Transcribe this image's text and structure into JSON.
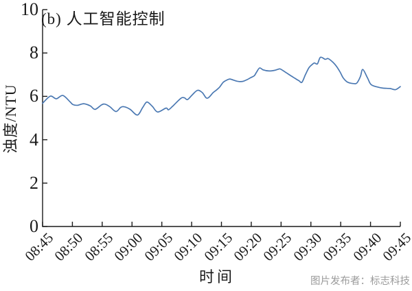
{
  "figure": {
    "title": "(b) 人工智能控制",
    "xlabel": "时间",
    "ylabel": "浊度/NTU",
    "watermark": "图片发布者：标志科技"
  },
  "colors": {
    "background": "#ffffff",
    "axis": "#1a1a1a",
    "text": "#1a1a1a",
    "line": "#4a78b2",
    "watermark": "#9b9b9b"
  },
  "chart_data": {
    "type": "line",
    "title": "(b) 人工智能控制",
    "xlabel": "时间",
    "ylabel": "浊度/NTU",
    "grid": false,
    "legend": null,
    "xlim_minutes": [
      0,
      60
    ],
    "ylim": [
      0,
      10
    ],
    "y_ticks": [
      0,
      2,
      4,
      6,
      8,
      10
    ],
    "x_tick_labels": [
      "08:45",
      "08:50",
      "08:55",
      "09:00",
      "09:05",
      "09:10",
      "09:15",
      "09:20",
      "09:25",
      "09:30",
      "09:35",
      "09:40",
      "09:45"
    ],
    "x_tick_interval_min": 5,
    "series": [
      {
        "name": "浊度",
        "unit": "NTU",
        "points_min_ntu": [
          [
            0,
            5.68
          ],
          [
            1.3,
            6.01
          ],
          [
            2.3,
            5.89
          ],
          [
            3.4,
            6.04
          ],
          [
            4.6,
            5.75
          ],
          [
            5.1,
            5.62
          ],
          [
            5.9,
            5.59
          ],
          [
            6.9,
            5.66
          ],
          [
            8.0,
            5.56
          ],
          [
            8.8,
            5.4
          ],
          [
            9.9,
            5.61
          ],
          [
            10.5,
            5.64
          ],
          [
            11.3,
            5.52
          ],
          [
            12.3,
            5.3
          ],
          [
            13.1,
            5.49
          ],
          [
            13.7,
            5.52
          ],
          [
            14.7,
            5.4
          ],
          [
            15.9,
            5.14
          ],
          [
            16.8,
            5.49
          ],
          [
            17.5,
            5.74
          ],
          [
            18.4,
            5.54
          ],
          [
            19.3,
            5.28
          ],
          [
            20.7,
            5.46
          ],
          [
            21.1,
            5.38
          ],
          [
            21.8,
            5.54
          ],
          [
            23.2,
            5.91
          ],
          [
            23.8,
            5.93
          ],
          [
            24.3,
            5.85
          ],
          [
            25.1,
            6.07
          ],
          [
            26.0,
            6.28
          ],
          [
            26.8,
            6.17
          ],
          [
            27.6,
            5.91
          ],
          [
            28.6,
            6.17
          ],
          [
            29.1,
            6.28
          ],
          [
            29.7,
            6.43
          ],
          [
            30.3,
            6.65
          ],
          [
            30.9,
            6.75
          ],
          [
            31.4,
            6.8
          ],
          [
            32.0,
            6.75
          ],
          [
            32.6,
            6.7
          ],
          [
            33.2,
            6.68
          ],
          [
            33.7,
            6.7
          ],
          [
            34.3,
            6.77
          ],
          [
            34.9,
            6.86
          ],
          [
            35.5,
            6.95
          ],
          [
            35.9,
            7.12
          ],
          [
            36.4,
            7.31
          ],
          [
            37.0,
            7.22
          ],
          [
            38.0,
            7.17
          ],
          [
            38.9,
            7.2
          ],
          [
            39.5,
            7.25
          ],
          [
            39.9,
            7.26
          ],
          [
            40.8,
            7.1
          ],
          [
            41.6,
            6.96
          ],
          [
            42.4,
            6.82
          ],
          [
            43.0,
            6.72
          ],
          [
            43.5,
            6.65
          ],
          [
            44.1,
            7.01
          ],
          [
            44.7,
            7.33
          ],
          [
            45.3,
            7.49
          ],
          [
            45.6,
            7.54
          ],
          [
            46.1,
            7.5
          ],
          [
            46.6,
            7.8
          ],
          [
            47.4,
            7.71
          ],
          [
            47.9,
            7.74
          ],
          [
            48.7,
            7.57
          ],
          [
            49.3,
            7.38
          ],
          [
            49.9,
            7.12
          ],
          [
            50.4,
            6.86
          ],
          [
            51.0,
            6.68
          ],
          [
            51.6,
            6.61
          ],
          [
            52.2,
            6.59
          ],
          [
            52.7,
            6.61
          ],
          [
            53.3,
            6.91
          ],
          [
            53.7,
            7.24
          ],
          [
            54.5,
            6.85
          ],
          [
            55.1,
            6.54
          ],
          [
            56.3,
            6.42
          ],
          [
            57.1,
            6.38
          ],
          [
            58.3,
            6.36
          ],
          [
            59.2,
            6.31
          ],
          [
            60,
            6.45
          ]
        ]
      }
    ]
  }
}
